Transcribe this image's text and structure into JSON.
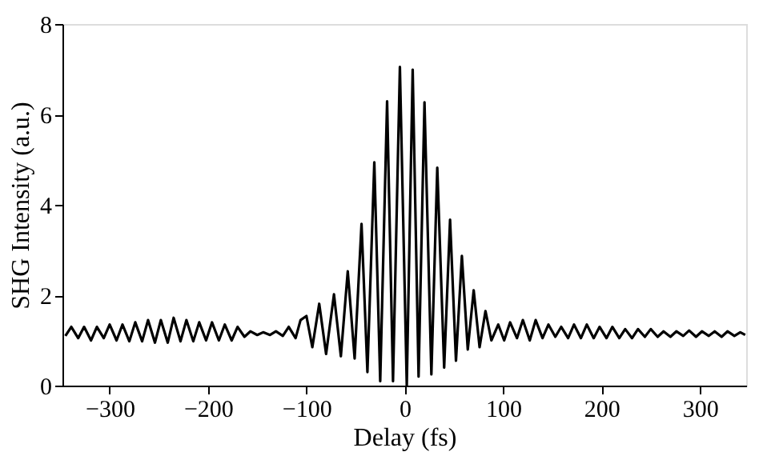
{
  "chart_data": {
    "type": "line",
    "xlabel": "Delay (fs)",
    "ylabel": "SHG Intensity (a.u.)",
    "xlim": [
      -348,
      347
    ],
    "xticks": [
      -300,
      -200,
      -100,
      0,
      100,
      200,
      300
    ],
    "ylim": [
      0,
      8
    ],
    "yticks": [
      0,
      2,
      4,
      6,
      8
    ],
    "grid": false,
    "marker": "none",
    "line_style": "solid",
    "series": [
      {
        "color": "#000000",
        "x": [
          -345,
          -339,
          -332,
          -326,
          -319,
          -313,
          -306,
          -300,
          -293,
          -287,
          -280,
          -274,
          -267,
          -261,
          -254,
          -248,
          -241,
          -235,
          -228,
          -222,
          -215,
          -209,
          -202,
          -196,
          -189,
          -183,
          -176,
          -170,
          -163,
          -157,
          -150,
          -144,
          -137,
          -131,
          -124,
          -118,
          -111,
          -106,
          -100,
          -94,
          -87,
          -80,
          -72,
          -65,
          -58,
          -51,
          -44,
          -38,
          -31,
          -25,
          -18,
          -12,
          -5,
          2,
          8,
          14,
          20,
          27,
          33,
          40,
          46,
          52,
          58,
          64,
          70,
          76,
          82,
          88,
          95,
          101,
          107,
          114,
          120,
          127,
          133,
          140,
          146,
          153,
          159,
          166,
          172,
          179,
          185,
          192,
          198,
          205,
          211,
          218,
          224,
          231,
          237,
          244,
          250,
          257,
          263,
          270,
          276,
          283,
          289,
          296,
          302,
          309,
          315,
          322,
          328,
          335,
          341,
          346
        ],
        "values": [
          1.1,
          1.3,
          1.05,
          1.3,
          1.0,
          1.3,
          1.05,
          1.35,
          1.0,
          1.35,
          0.98,
          1.4,
          0.98,
          1.45,
          0.95,
          1.45,
          0.95,
          1.5,
          0.98,
          1.45,
          0.98,
          1.4,
          1.0,
          1.4,
          1.0,
          1.35,
          1.0,
          1.3,
          1.08,
          1.2,
          1.12,
          1.18,
          1.12,
          1.2,
          1.1,
          1.3,
          1.05,
          1.45,
          1.54,
          0.85,
          1.81,
          0.7,
          2.02,
          0.65,
          2.53,
          0.6,
          3.58,
          0.3,
          4.94,
          0.1,
          6.29,
          0.1,
          7.05,
          0.0,
          6.99,
          0.2,
          6.27,
          0.25,
          4.82,
          0.4,
          3.67,
          0.55,
          2.87,
          0.8,
          2.11,
          0.85,
          1.65,
          1.0,
          1.35,
          1.0,
          1.4,
          1.05,
          1.45,
          1.0,
          1.45,
          1.05,
          1.35,
          1.08,
          1.3,
          1.05,
          1.35,
          1.05,
          1.35,
          1.05,
          1.3,
          1.05,
          1.3,
          1.05,
          1.25,
          1.05,
          1.25,
          1.08,
          1.25,
          1.08,
          1.2,
          1.08,
          1.2,
          1.1,
          1.22,
          1.08,
          1.2,
          1.1,
          1.2,
          1.08,
          1.2,
          1.1,
          1.18,
          1.12
        ]
      }
    ]
  }
}
